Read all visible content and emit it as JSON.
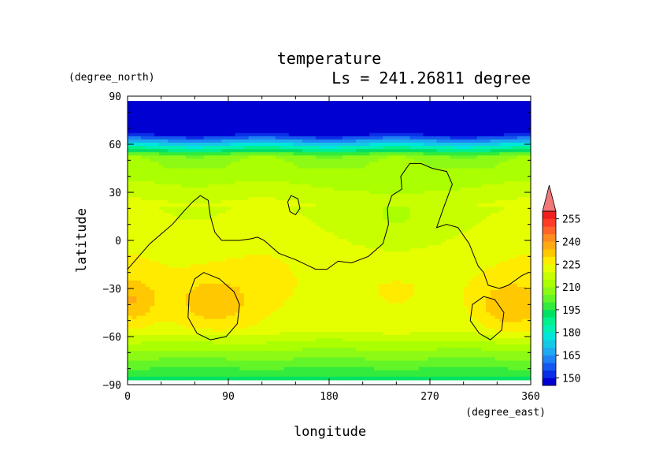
{
  "chart_data": {
    "type": "heatmap",
    "title": "temperature",
    "subtitle": "Ls = 241.26811 degree",
    "xlabel": "longitude",
    "ylabel": "latitude",
    "x_unit": "(degree_east)",
    "y_unit": "(degree_north)",
    "xlim": [
      0,
      360
    ],
    "ylim": [
      -90,
      90
    ],
    "data_lat_range": [
      -87,
      87
    ],
    "x_ticks": [
      0,
      90,
      180,
      270,
      360
    ],
    "y_ticks": [
      -90,
      -60,
      -30,
      0,
      30,
      60,
      90
    ],
    "x_tick_labels": [
      "0",
      "90",
      "180",
      "270",
      "360"
    ],
    "y_tick_labels": [
      "−90",
      "−60",
      "−30",
      "0",
      "30",
      "60",
      "90"
    ],
    "colorbar": {
      "levels": [
        145,
        150,
        155,
        160,
        165,
        170,
        175,
        180,
        185,
        190,
        195,
        200,
        205,
        210,
        215,
        220,
        225,
        230,
        235,
        240,
        245,
        250,
        255,
        260
      ],
      "colors": [
        "#0000d2",
        "#0a2ee6",
        "#1458f0",
        "#1e82f5",
        "#1eaaf0",
        "#14c8e6",
        "#00e6dc",
        "#00f0b4",
        "#00f08c",
        "#00e164",
        "#32eb3c",
        "#64f528",
        "#8cfa14",
        "#aaff00",
        "#c8ff00",
        "#e6ff00",
        "#ffeb00",
        "#ffc800",
        "#ffaa14",
        "#ff8c1e",
        "#ff6428",
        "#ff3c28",
        "#f01e1e"
      ],
      "tick_labels": [
        "150",
        "165",
        "180",
        "195",
        "210",
        "225",
        "240",
        "255"
      ],
      "extend": "max",
      "extend_color": "#f07878"
    },
    "contours": [
      {
        "label": "continent outline",
        "points": [
          [
            0,
            -18
          ],
          [
            10,
            -10
          ],
          [
            20,
            -2
          ],
          [
            30,
            4
          ],
          [
            40,
            10
          ],
          [
            50,
            18
          ],
          [
            58,
            24
          ],
          [
            65,
            28
          ],
          [
            72,
            25
          ],
          [
            74,
            15
          ],
          [
            78,
            5
          ],
          [
            84,
            0
          ],
          [
            100,
            0
          ],
          [
            110,
            1
          ],
          [
            116,
            2
          ],
          [
            122,
            0
          ],
          [
            135,
            -8
          ],
          [
            150,
            -12
          ],
          [
            168,
            -18
          ],
          [
            178,
            -18
          ],
          [
            188,
            -13
          ],
          [
            200,
            -14
          ],
          [
            215,
            -10
          ],
          [
            228,
            -2
          ],
          [
            233,
            10
          ],
          [
            232,
            20
          ],
          [
            236,
            28
          ],
          [
            245,
            32
          ],
          [
            244,
            40
          ],
          [
            252,
            48
          ],
          [
            262,
            48
          ],
          [
            272,
            45
          ],
          [
            285,
            43
          ],
          [
            290,
            35
          ],
          [
            282,
            20
          ],
          [
            276,
            8
          ],
          [
            285,
            10
          ],
          [
            295,
            8
          ],
          [
            305,
            -2
          ],
          [
            313,
            -16
          ],
          [
            318,
            -20
          ],
          [
            322,
            -28
          ],
          [
            332,
            -30
          ],
          [
            340,
            -28
          ],
          [
            352,
            -22
          ],
          [
            358,
            -20
          ]
        ]
      },
      {
        "label": "crater west",
        "points": [
          [
            68,
            -20
          ],
          [
            82,
            -24
          ],
          [
            95,
            -32
          ],
          [
            100,
            -40
          ],
          [
            98,
            -52
          ],
          [
            88,
            -60
          ],
          [
            74,
            -62
          ],
          [
            62,
            -58
          ],
          [
            54,
            -48
          ],
          [
            55,
            -34
          ],
          [
            60,
            -24
          ]
        ]
      },
      {
        "label": "crater east",
        "points": [
          [
            318,
            -35
          ],
          [
            328,
            -37
          ],
          [
            336,
            -45
          ],
          [
            334,
            -56
          ],
          [
            324,
            -62
          ],
          [
            314,
            -58
          ],
          [
            306,
            -50
          ],
          [
            308,
            -40
          ]
        ]
      },
      {
        "label": "small island",
        "points": [
          [
            146,
            28
          ],
          [
            152,
            26
          ],
          [
            154,
            20
          ],
          [
            150,
            16
          ],
          [
            145,
            18
          ],
          [
            143,
            24
          ]
        ]
      }
    ]
  }
}
